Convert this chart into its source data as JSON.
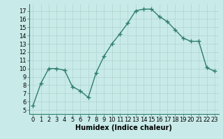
{
  "x": [
    0,
    1,
    2,
    3,
    4,
    5,
    6,
    7,
    8,
    9,
    10,
    11,
    12,
    13,
    14,
    15,
    16,
    17,
    18,
    19,
    20,
    21,
    22,
    23
  ],
  "y": [
    5.5,
    8.2,
    10.0,
    10.0,
    9.8,
    7.8,
    7.3,
    6.5,
    9.5,
    11.5,
    13.0,
    14.2,
    15.5,
    17.0,
    17.2,
    17.2,
    16.3,
    15.7,
    14.7,
    13.7,
    13.3,
    13.3,
    10.1,
    9.7
  ],
  "line_color": "#2e7d6e",
  "marker": "+",
  "marker_size": 4,
  "background_color": "#c8eae8",
  "grid_color": "#b0d4d0",
  "xlabel": "Humidex (Indice chaleur)",
  "xlim": [
    -0.5,
    23.5
  ],
  "ylim": [
    4.5,
    17.8
  ],
  "xticks": [
    0,
    1,
    2,
    3,
    4,
    5,
    6,
    7,
    8,
    9,
    10,
    11,
    12,
    13,
    14,
    15,
    16,
    17,
    18,
    19,
    20,
    21,
    22,
    23
  ],
  "yticks": [
    5,
    6,
    7,
    8,
    9,
    10,
    11,
    12,
    13,
    14,
    15,
    16,
    17
  ],
  "xlabel_fontsize": 7,
  "tick_fontsize": 6,
  "line_width": 1.0,
  "spine_color": "#2e7d6e"
}
